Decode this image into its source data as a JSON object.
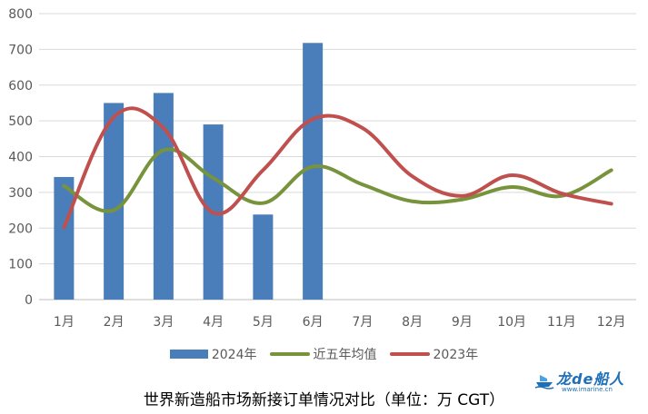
{
  "chart_data": {
    "type": "bar+line",
    "title": "世界新造船市场新接订单情况对比（单位：万 CGT）",
    "categories": [
      "1月",
      "2月",
      "3月",
      "4月",
      "5月",
      "6月",
      "7月",
      "8月",
      "9月",
      "10月",
      "11月",
      "12月"
    ],
    "yticks": [
      "0",
      "100",
      "200",
      "300",
      "400",
      "500",
      "600",
      "700",
      "800"
    ],
    "ylim": [
      0,
      800
    ],
    "grid": true,
    "legend_position": "bottom",
    "series": [
      {
        "name": "2024年",
        "kind": "bar",
        "color": "#4a7ebb",
        "values": [
          343,
          550,
          578,
          490,
          238,
          718,
          null,
          null,
          null,
          null,
          null,
          null
        ]
      },
      {
        "name": "近五年均值",
        "kind": "line",
        "color": "#77933c",
        "values": [
          318,
          250,
          418,
          340,
          270,
          372,
          322,
          275,
          280,
          315,
          290,
          362
        ]
      },
      {
        "name": "2023年",
        "kind": "line",
        "color": "#c0504d",
        "values": [
          202,
          510,
          480,
          243,
          362,
          505,
          480,
          345,
          290,
          348,
          297,
          268
        ]
      }
    ]
  },
  "legend": {
    "bar_label": "2024年",
    "avg_label": "近五年均值",
    "y2023_label": "2023年"
  },
  "watermark": {
    "brand": "龙de船人",
    "url": "www.imarine.cn"
  },
  "colors": {
    "bar": "#4a7ebb",
    "avg": "#77933c",
    "y2023": "#c0504d",
    "grid": "#d9d9d9"
  }
}
